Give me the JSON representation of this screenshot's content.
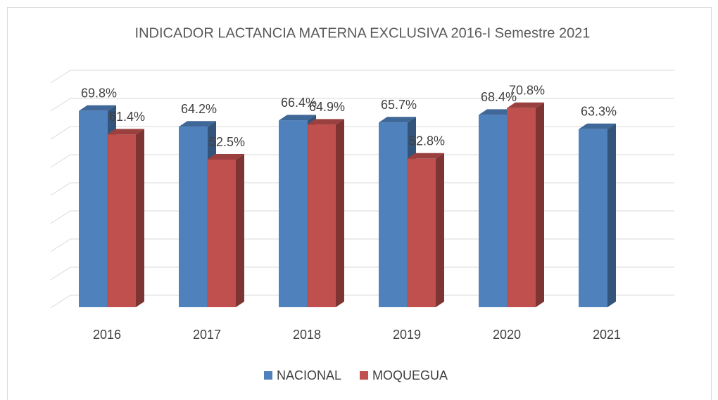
{
  "chart_data": {
    "type": "bar3d",
    "title": "INDICADOR LACTANCIA MATERNA EXCLUSIVA  2016-I Semestre 2021",
    "categories": [
      "2016",
      "2017",
      "2018",
      "2019",
      "2020",
      "2021"
    ],
    "series": [
      {
        "name": "NACIONAL",
        "color": "#4f81bd",
        "values": [
          69.8,
          64.2,
          66.4,
          65.7,
          68.4,
          63.3
        ],
        "value_labels": [
          "69.8%",
          "64.2%",
          "66.4%",
          "65.7%",
          "68.4%",
          "63.3%"
        ]
      },
      {
        "name": "MOQUEGUA",
        "color": "#c0504d",
        "values": [
          61.4,
          52.5,
          64.9,
          52.8,
          70.8,
          null
        ],
        "value_labels": [
          "61.4%",
          "52.5%",
          "64.9%",
          "52.8%",
          "70.8%",
          null
        ]
      }
    ],
    "ylim": [
      0,
      80
    ],
    "yticks": [
      0,
      10,
      20,
      30,
      40,
      50,
      60,
      70,
      80
    ],
    "grid": true,
    "legend": "bottom"
  }
}
